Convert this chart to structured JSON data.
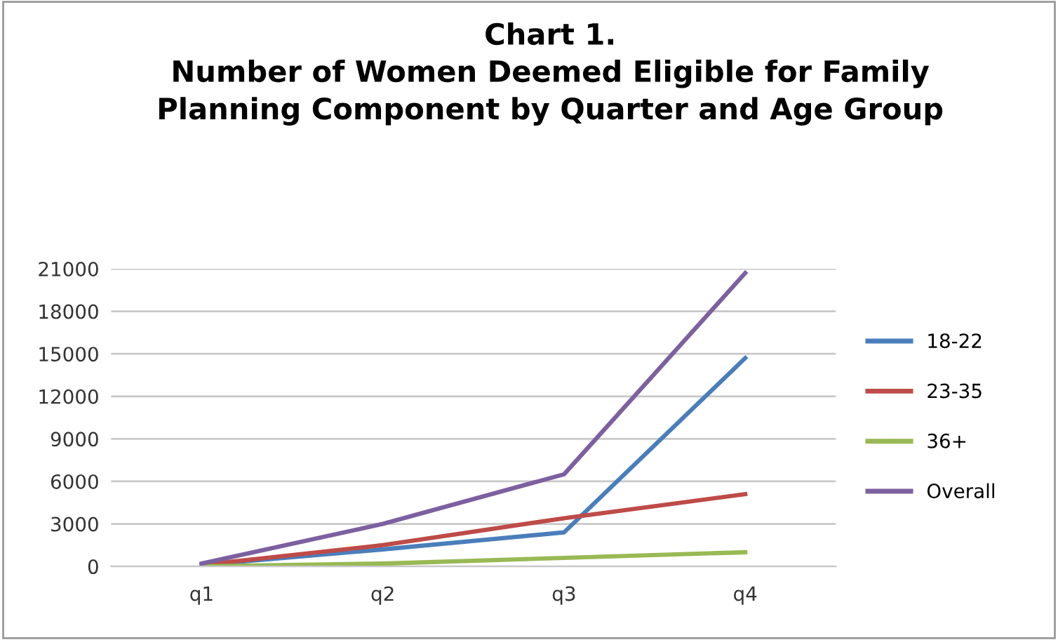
{
  "chart_data": {
    "type": "line",
    "title": "Chart 1.\nNumber of Women Deemed Eligible for Family\nPlanning Component by Quarter and Age Group",
    "categories": [
      "q1",
      "q2",
      "q3",
      "q4"
    ],
    "series": [
      {
        "name": "18-22",
        "color": "#4a7ebb",
        "values": [
          100,
          1200,
          2400,
          14700
        ]
      },
      {
        "name": "23-35",
        "color": "#be4b48",
        "values": [
          100,
          1500,
          3400,
          5100
        ]
      },
      {
        "name": "36+",
        "color": "#98b954",
        "values": [
          0,
          200,
          600,
          1000
        ]
      },
      {
        "name": "Overall",
        "color": "#7d60a0",
        "values": [
          200,
          3000,
          6500,
          20700
        ]
      }
    ],
    "ylim": [
      0,
      21000
    ],
    "yticks": [
      0,
      3000,
      6000,
      9000,
      12000,
      15000,
      18000,
      21000
    ],
    "grid": "y",
    "legend": "right",
    "marker": "none",
    "line_style": "solid"
  }
}
